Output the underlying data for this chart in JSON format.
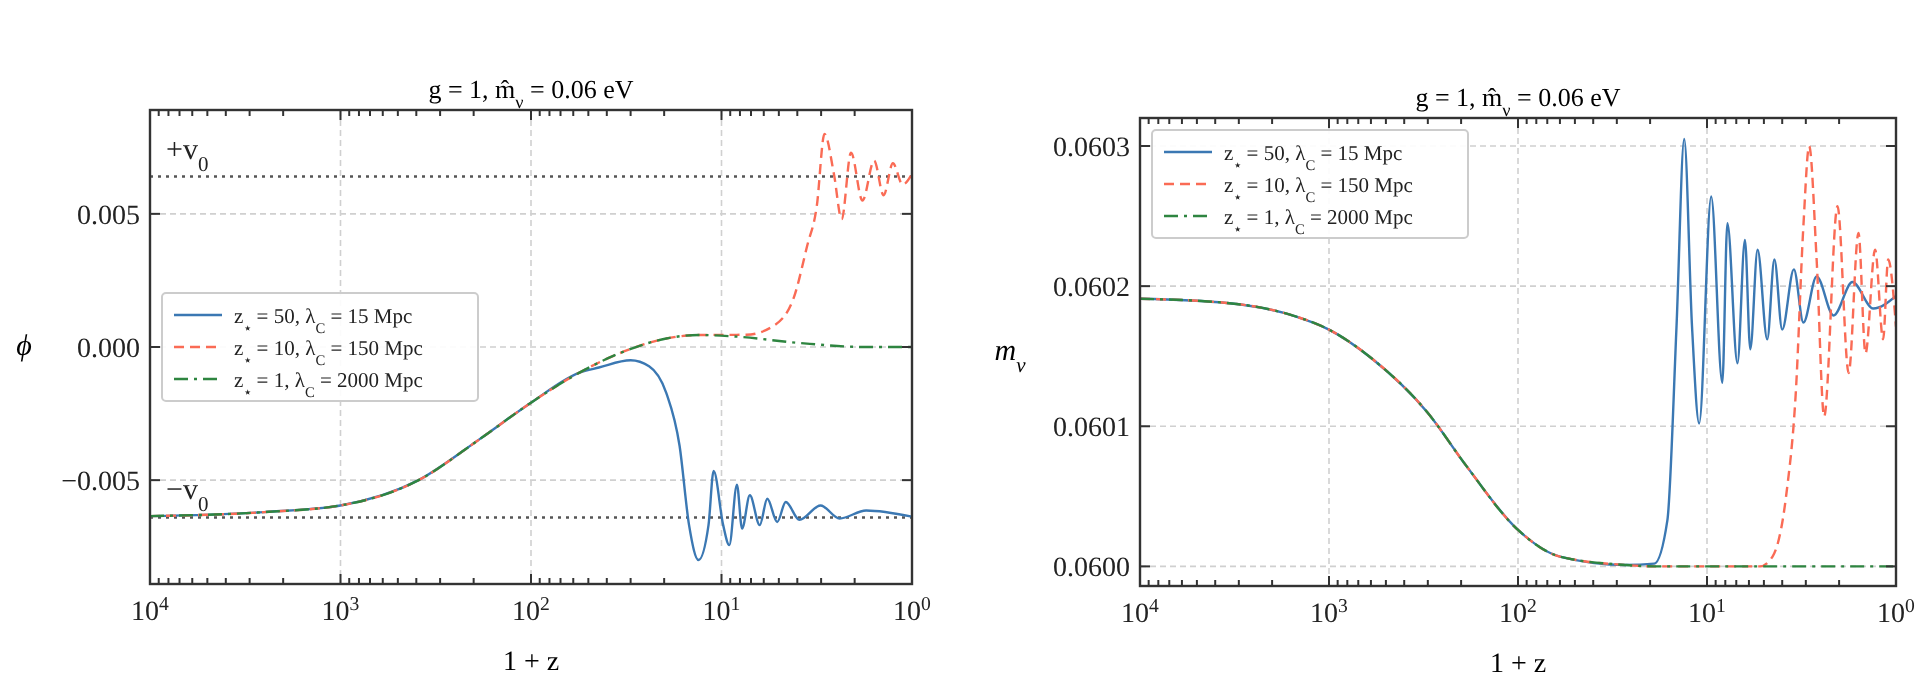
{
  "chart_data": [
    {
      "type": "line",
      "title": "g = 1, m̂$_{ν}$ = 0.06 eV",
      "xlabel": "1 + z",
      "ylabel": "ϕ",
      "log": "x",
      "grid": true,
      "legend": "left",
      "xlim": [
        10000,
        1
      ],
      "xticks": [
        {
          "value": 10000,
          "label": "10$^{4}$"
        },
        {
          "value": 9000,
          "label": null
        },
        {
          "value": 8000,
          "label": null
        },
        {
          "value": 7000,
          "label": null
        },
        {
          "value": 6000,
          "label": null
        },
        {
          "value": 5000,
          "label": null
        },
        {
          "value": 4000,
          "label": null
        },
        {
          "value": 3000,
          "label": null
        },
        {
          "value": 2000,
          "label": null
        },
        {
          "value": 1000,
          "label": "10$^{3}$"
        },
        {
          "value": 900,
          "label": null
        },
        {
          "value": 800,
          "label": null
        },
        {
          "value": 700,
          "label": null
        },
        {
          "value": 600,
          "label": null
        },
        {
          "value": 500,
          "label": null
        },
        {
          "value": 400,
          "label": null
        },
        {
          "value": 300,
          "label": null
        },
        {
          "value": 200,
          "label": null
        },
        {
          "value": 100,
          "label": "10$^{2}$"
        },
        {
          "value": 90,
          "label": null
        },
        {
          "value": 80,
          "label": null
        },
        {
          "value": 70,
          "label": null
        },
        {
          "value": 60,
          "label": null
        },
        {
          "value": 50,
          "label": null
        },
        {
          "value": 40,
          "label": null
        },
        {
          "value": 30,
          "label": null
        },
        {
          "value": 20,
          "label": null
        },
        {
          "value": 10,
          "label": "10$^{1}$"
        },
        {
          "value": 9,
          "label": null
        },
        {
          "value": 8,
          "label": null
        },
        {
          "value": 7,
          "label": null
        },
        {
          "value": 6,
          "label": null
        },
        {
          "value": 5,
          "label": null
        },
        {
          "value": 4,
          "label": null
        },
        {
          "value": 3,
          "label": null
        },
        {
          "value": 2,
          "label": null
        },
        {
          "value": 1,
          "label": "10$^{0}$"
        }
      ],
      "ylim": [
        -0.0089,
        0.0089
      ],
      "yticks": [
        {
          "value": -0.005,
          "label": "−0.005"
        },
        {
          "value": 0,
          "label": "0.000"
        },
        {
          "value": 0.005,
          "label": "0.005"
        }
      ],
      "ref_lines": [
        {
          "axis": "y",
          "value": 0.0064,
          "label": "+v$_{0}$",
          "color": "#555555",
          "line_style": "dotted"
        },
        {
          "axis": "y",
          "value": -0.0064,
          "label": "−v$_{0}$",
          "color": "#555555",
          "line_style": "dotted"
        }
      ],
      "series": [
        {
          "name": "z$_{⋆}$ = 50, λ$_{C}$ = 15 Mpc",
          "color": "#3b78b3",
          "line_style": "solid",
          "x": [
            10000,
            2512,
            1000,
            389,
            186,
            100,
            56,
            44,
            30,
            24,
            19.5,
            16.6,
            14.8,
            13.2,
            11.7,
            11,
            9.8,
            9.1,
            8.3,
            7.8,
            7.1,
            6.3,
            5.75,
            5.1,
            4.6,
            3.9,
            3.02,
            2.4,
            1.74,
            1
          ],
          "values": [
            -0.00635,
            -0.0062,
            -0.00595,
            -0.005,
            -0.00346,
            -0.00209,
            -0.00097,
            -0.00077,
            -0.0005,
            -0.00072,
            -0.00172,
            -0.00371,
            -0.00669,
            -0.008,
            -0.00669,
            -0.00465,
            -0.00669,
            -0.00744,
            -0.00517,
            -0.00682,
            -0.00557,
            -0.00669,
            -0.0057,
            -0.00657,
            -0.00582,
            -0.00649,
            -0.00595,
            -0.00644,
            -0.00614,
            -0.00637
          ]
        },
        {
          "name": "z$_{⋆}$ = 10, λ$_{C}$ = 150 Mpc",
          "color": "#fa6b55",
          "line_style": "dashed",
          "x": [
            10000,
            2512,
            1000,
            389,
            186,
            100,
            56,
            32,
            19.5,
            13.2,
            7.4,
            5.4,
            4.2,
            3.55,
            3.16,
            2.88,
            2.57,
            2.34,
            2.09,
            1.82,
            1.58,
            1.41,
            1.26,
            1.12,
            1
          ],
          "values": [
            -0.00635,
            -0.0062,
            -0.00595,
            -0.005,
            -0.00346,
            -0.00209,
            -0.00097,
            -0.00015,
            0.00032,
            0.00045,
            0.00046,
            0.00077,
            0.0018,
            0.0038,
            0.0053,
            0.008,
            0.0065,
            0.0048,
            0.0073,
            0.0055,
            0.007,
            0.0057,
            0.0069,
            0.0061,
            0.0065
          ]
        },
        {
          "name": "z$_{⋆}$ = 1, λ$_{C}$ = 2000 Mpc",
          "color": "#2e8540",
          "line_style": "dashdot",
          "x": [
            10000,
            2512,
            1000,
            389,
            186,
            100,
            56,
            32,
            19.5,
            13.2,
            8.7,
            3.9,
            1.74,
            1
          ],
          "values": [
            -0.00635,
            -0.0062,
            -0.00595,
            -0.005,
            -0.00346,
            -0.00209,
            -0.00097,
            -0.00015,
            0.00032,
            0.00045,
            0.0004,
            0.00015,
            0,
            0
          ]
        }
      ]
    },
    {
      "type": "line",
      "title": "g = 1, m̂$_{ν}$ = 0.06 eV",
      "xlabel": "1 + z",
      "ylabel": "m$_{ν}$",
      "log": "x",
      "grid": true,
      "legend": "top left",
      "xlim": [
        10000,
        1
      ],
      "xticks": [
        {
          "value": 10000,
          "label": "10$^{4}$"
        },
        {
          "value": 9000,
          "label": null
        },
        {
          "value": 8000,
          "label": null
        },
        {
          "value": 7000,
          "label": null
        },
        {
          "value": 6000,
          "label": null
        },
        {
          "value": 5000,
          "label": null
        },
        {
          "value": 4000,
          "label": null
        },
        {
          "value": 3000,
          "label": null
        },
        {
          "value": 2000,
          "label": null
        },
        {
          "value": 1000,
          "label": "10$^{3}$"
        },
        {
          "value": 900,
          "label": null
        },
        {
          "value": 800,
          "label": null
        },
        {
          "value": 700,
          "label": null
        },
        {
          "value": 600,
          "label": null
        },
        {
          "value": 500,
          "label": null
        },
        {
          "value": 400,
          "label": null
        },
        {
          "value": 300,
          "label": null
        },
        {
          "value": 200,
          "label": null
        },
        {
          "value": 100,
          "label": "10$^{2}$"
        },
        {
          "value": 90,
          "label": null
        },
        {
          "value": 80,
          "label": null
        },
        {
          "value": 70,
          "label": null
        },
        {
          "value": 60,
          "label": null
        },
        {
          "value": 50,
          "label": null
        },
        {
          "value": 40,
          "label": null
        },
        {
          "value": 30,
          "label": null
        },
        {
          "value": 20,
          "label": null
        },
        {
          "value": 10,
          "label": "10$^{1}$"
        },
        {
          "value": 9,
          "label": null
        },
        {
          "value": 8,
          "label": null
        },
        {
          "value": 7,
          "label": null
        },
        {
          "value": 6,
          "label": null
        },
        {
          "value": 5,
          "label": null
        },
        {
          "value": 4,
          "label": null
        },
        {
          "value": 3,
          "label": null
        },
        {
          "value": 2,
          "label": null
        },
        {
          "value": 1,
          "label": "10$^{0}$"
        }
      ],
      "ylim": [
        0.059986,
        0.06032
      ],
      "yticks": [
        {
          "value": 0.06,
          "label": "0.0600"
        },
        {
          "value": 0.0601,
          "label": "0.0601"
        },
        {
          "value": 0.0602,
          "label": "0.0602"
        },
        {
          "value": 0.0603,
          "label": "0.0603"
        }
      ],
      "series": [
        {
          "name": "z$_{⋆}$ = 50, λ$_{C}$ = 15 Mpc",
          "color": "#3b78b3",
          "line_style": "solid",
          "x": [
            10000,
            3467,
            1549,
            1000,
            589,
            302,
            186,
            100,
            60,
            27,
            19,
            16.2,
            14.5,
            13.2,
            12,
            11,
            9.5,
            8.3,
            7.8,
            6.9,
            6.3,
            5.9,
            5.4,
            4.8,
            4.4,
            4.0,
            3.47,
            3.09,
            2.63,
            2.14,
            1.7,
            1.32,
            1
          ],
          "values": [
            0.060191,
            0.060188,
            0.060179,
            0.060169,
            0.060148,
            0.06011,
            0.060071,
            0.060026,
            0.060007,
            0.060001,
            0.060002,
            0.060033,
            0.060171,
            0.060305,
            0.060171,
            0.060102,
            0.060264,
            0.060131,
            0.060245,
            0.060145,
            0.060233,
            0.060155,
            0.060226,
            0.060162,
            0.060219,
            0.060169,
            0.060212,
            0.060174,
            0.060207,
            0.060179,
            0.060203,
            0.060184,
            0.060193
          ]
        },
        {
          "name": "z$_{⋆}$ = 10, λ$_{C}$ = 150 Mpc",
          "color": "#fa6b55",
          "line_style": "dashed",
          "x": [
            10000,
            3467,
            1549,
            1000,
            589,
            302,
            186,
            100,
            60,
            27,
            19,
            5.25,
            4.5,
            3.8,
            3.39,
            3.09,
            2.88,
            2.63,
            2.4,
            2.04,
            1.78,
            1.58,
            1.45,
            1.29,
            1.17,
            1.1,
            1
          ],
          "values": [
            0.060191,
            0.060188,
            0.060179,
            0.060169,
            0.060148,
            0.06011,
            0.060071,
            0.060026,
            0.060007,
            0.060001,
            0.06,
            0.06,
            0.060007,
            0.060052,
            0.060124,
            0.060243,
            0.0603,
            0.060219,
            0.060107,
            0.060257,
            0.060138,
            0.060238,
            0.060152,
            0.060226,
            0.060162,
            0.060219,
            0.060171
          ]
        },
        {
          "name": "z$_{⋆}$ = 1, λ$_{C}$ = 2000 Mpc",
          "color": "#2e8540",
          "line_style": "dashdot",
          "x": [
            10000,
            3467,
            1549,
            1000,
            589,
            302,
            186,
            100,
            60,
            27,
            19,
            1
          ],
          "values": [
            0.060191,
            0.060188,
            0.060179,
            0.060169,
            0.060148,
            0.06011,
            0.060071,
            0.060026,
            0.060007,
            0.060001,
            0.06,
            0.06
          ]
        }
      ]
    }
  ]
}
